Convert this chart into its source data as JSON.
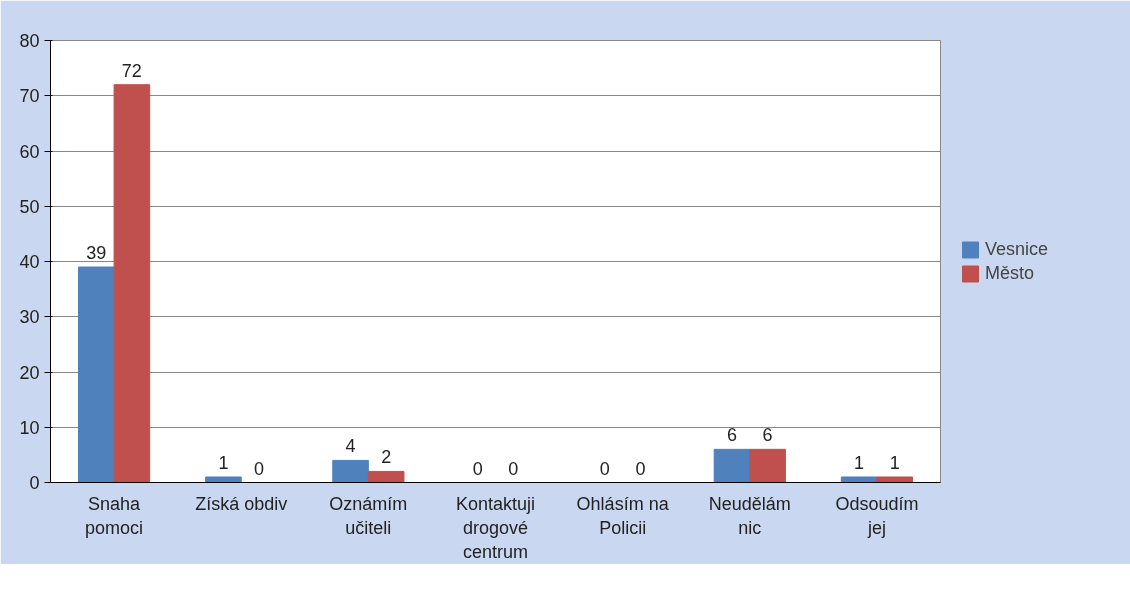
{
  "chart_data": {
    "type": "bar",
    "categories": [
      "Snaha pomoci",
      "Získá obdiv",
      "Oznámím učiteli",
      "Kontaktuji drogové centrum",
      "Ohlásím na Policii",
      "Neudělám nic",
      "Odsoudím jej"
    ],
    "series": [
      {
        "name": "Vesnice",
        "color": "#4f81bd",
        "values": [
          39,
          1,
          4,
          0,
          0,
          6,
          1
        ]
      },
      {
        "name": "Město",
        "color": "#c0504d",
        "values": [
          72,
          0,
          2,
          0,
          0,
          6,
          1
        ]
      }
    ],
    "ylim": [
      0,
      80
    ],
    "yticks": [
      0,
      10,
      20,
      30,
      40,
      50,
      60,
      70,
      80
    ],
    "grid": "y",
    "legend": "right",
    "data_labels": true
  }
}
